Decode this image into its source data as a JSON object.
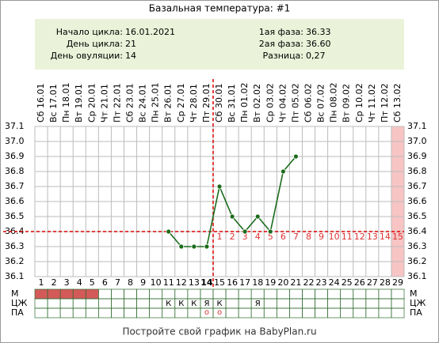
{
  "chart_data": {
    "type": "line",
    "title": "Базальная температура: #1",
    "info_left": [
      [
        "Начало цикла:",
        "16.01.2021"
      ],
      [
        "День цикла:",
        "21"
      ],
      [
        "День овуляции:",
        "14"
      ]
    ],
    "info_right": [
      [
        "1ая фаза:",
        "36.33"
      ],
      [
        "2ая фаза:",
        "36.60"
      ],
      [
        "Разница:",
        "0,27"
      ]
    ],
    "categories": [
      "Сб 16.01",
      "Вс 17.01",
      "Пн 18.01",
      "Вт 19.01",
      "Ср 20.01",
      "Чт 21.01",
      "Пт 22.01",
      "Сб 23.01",
      "Вс 24.01",
      "Пн 25.01",
      "Вт 26.01",
      "Ср 27.01",
      "Чт 28.01",
      "Пт 29.01",
      "Сб 30.01",
      "Вс 31.01",
      "Пн 01.02",
      "Вт 02.02",
      "Ср 03.02",
      "Чт 04.02",
      "Пт 05.02",
      "Сб 06.02",
      "Вс 07.02",
      "Пн 08.02",
      "Вт 09.02",
      "Ср 10.02",
      "Чт 11.02",
      "Пт 12.02",
      "Сб 13.02"
    ],
    "days": [
      1,
      2,
      3,
      4,
      5,
      6,
      7,
      8,
      9,
      10,
      11,
      12,
      13,
      14,
      15,
      16,
      17,
      18,
      19,
      20,
      21,
      22,
      23,
      24,
      25,
      26,
      27,
      28,
      29
    ],
    "series": [
      {
        "color": "#1b6b1b",
        "values": [
          null,
          null,
          null,
          null,
          null,
          null,
          null,
          null,
          null,
          null,
          36.4,
          36.3,
          36.3,
          36.3,
          36.7,
          36.5,
          36.4,
          36.5,
          36.4,
          36.8,
          36.9,
          null,
          null,
          null,
          null,
          null,
          null,
          null,
          null
        ]
      }
    ],
    "ylim": [
      36.1,
      37.1
    ],
    "yticks": [
      36.1,
      36.2,
      36.3,
      36.4,
      36.5,
      36.6,
      36.7,
      36.8,
      36.9,
      {
        "value": 37.0,
        "label": "37.0"
      },
      37.1
    ],
    "grid": true,
    "coverline": 36.4,
    "ovulation_day": 14,
    "phase_days": [
      1,
      2,
      3,
      4,
      5,
      6,
      7,
      8,
      9,
      10,
      11,
      12,
      13,
      14,
      15
    ],
    "highlight_day": 29,
    "row_labels": [
      "М",
      "ЦЖ",
      "ПА"
    ],
    "menstruation": [
      true,
      true,
      true,
      true,
      true,
      false,
      false,
      false,
      false,
      false,
      false,
      false,
      false,
      false,
      false,
      false,
      false,
      false,
      false,
      false,
      false,
      false,
      false,
      false,
      false,
      false,
      false,
      false,
      false
    ],
    "cervical": [
      null,
      null,
      null,
      null,
      null,
      null,
      null,
      null,
      null,
      null,
      "К",
      "К",
      "К",
      "Я",
      "К",
      null,
      null,
      "Я",
      null,
      null,
      null,
      null,
      null,
      null,
      null,
      null,
      null,
      null,
      null
    ],
    "tests": [
      null,
      null,
      null,
      null,
      null,
      null,
      null,
      null,
      null,
      null,
      null,
      null,
      null,
      "о",
      "о",
      null,
      null,
      null,
      null,
      null,
      null,
      null,
      null,
      null,
      null,
      null,
      null,
      null,
      null
    ],
    "footer": "Постройте свой график на BabyPlan.ru"
  }
}
